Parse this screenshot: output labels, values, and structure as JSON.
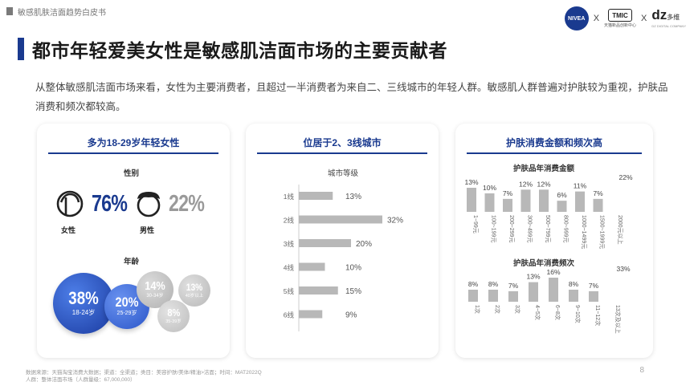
{
  "doc_title": "敏感肌肤洁面趋势白皮书",
  "logos": {
    "nivea": "NIVEA",
    "tmic": "TMIC",
    "tmic_caption": "天猫新品创新中心",
    "dz": "dz",
    "dz_cn": "多维",
    "dz_caption": "DZ DIGITAL COMPANY",
    "separator": "X"
  },
  "page_title": "都市年轻爱美女性是敏感肌洁面市场的主要贡献者",
  "intro": "从整体敏感肌洁面市场来看，女性为主要消费者，且超过一半消费者为来自二、三线城市的年轻人群。敏感肌人群普遍对护肤较为重视，护肤品消费和频次都较高。",
  "panel1": {
    "header": "多为18-29岁年轻女性",
    "gender_label": "性别",
    "female": {
      "label": "女性",
      "pct": "76%"
    },
    "male": {
      "label": "男性",
      "pct": "22%"
    },
    "age_label": "年龄",
    "age_bubbles": [
      {
        "value": "38%",
        "range": "18-24岁"
      },
      {
        "value": "20%",
        "range": "25-29岁"
      },
      {
        "value": "14%",
        "range": "30-34岁"
      },
      {
        "value": "13%",
        "range": "40岁以上"
      },
      {
        "value": "8%",
        "range": "35-39岁"
      }
    ]
  },
  "panel2": {
    "header": "位居于2、3线城市",
    "chart_title": "城市等级"
  },
  "panel3": {
    "header": "护肤消费金额和频次高",
    "amount_title": "护肤品年消费金额",
    "freq_title": "护肤品年消费频次"
  },
  "chart_data": [
    {
      "type": "bar",
      "orientation": "horizontal",
      "title": "城市等级",
      "categories": [
        "1线",
        "2线",
        "3线",
        "4线",
        "5线",
        "6线"
      ],
      "values": [
        13,
        32,
        20,
        10,
        15,
        9
      ],
      "value_labels": [
        "13%",
        "32%",
        "20%",
        "10%",
        "15%",
        "9%"
      ],
      "unit": "%",
      "xlim": [
        0,
        32
      ]
    },
    {
      "type": "bar",
      "title": "护肤品年消费金额",
      "categories": [
        "1~99元",
        "100~199元",
        "200~299元",
        "300~499元",
        "500~799元",
        "800~999元",
        "1000~1499元",
        "1500~1999元",
        "2000元以上"
      ],
      "values": [
        13,
        10,
        7,
        12,
        12,
        6,
        11,
        7,
        22
      ],
      "value_labels": [
        "13%",
        "10%",
        "7%",
        "12%",
        "12%",
        "6%",
        "11%",
        "7%",
        "22%"
      ],
      "unit": "%",
      "ylim": [
        0,
        22
      ]
    },
    {
      "type": "bar",
      "title": "护肤品年消费频次",
      "categories": [
        "1次",
        "2次",
        "3次",
        "4~5次",
        "6~8次",
        "9~10次",
        "11~12次",
        "13次及以上"
      ],
      "values": [
        8,
        8,
        7,
        13,
        16,
        8,
        7,
        33
      ],
      "value_labels": [
        "8%",
        "8%",
        "7%",
        "13%",
        "16%",
        "8%",
        "7%",
        "33%"
      ],
      "unit": "%",
      "ylim": [
        0,
        33
      ]
    }
  ],
  "footer": {
    "line1": "数据来源：天猫淘宝消费大数据；渠道：全渠道；类目：美容护肤/美体/精油>洁面；时间：MAT2022Q",
    "line2": "人群：整体洁面市场（人群量级：67,000,000）"
  },
  "page_number": "8",
  "colors": {
    "brand_blue": "#1a3a8f",
    "bubble_blue": "#2a55c8",
    "grey_bar": "#b8b8b8",
    "grey_text": "#9a9a9a"
  }
}
